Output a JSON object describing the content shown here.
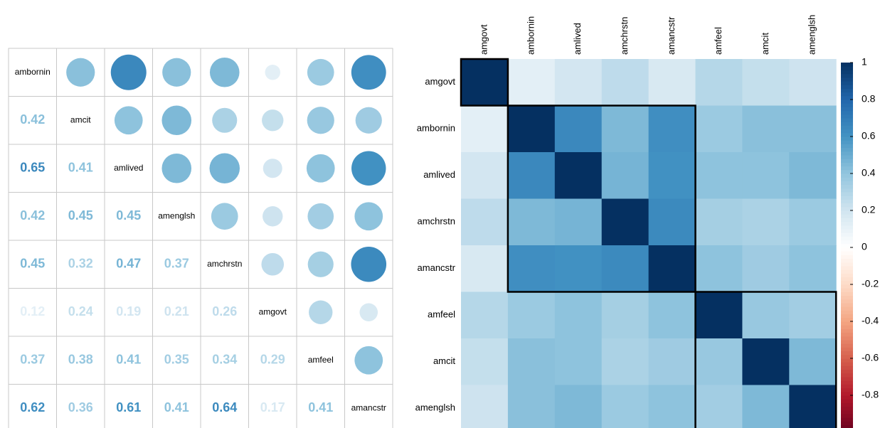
{
  "chart_data": [
    {
      "type": "corrplot-mixed",
      "variables": [
        "ambornin",
        "amcit",
        "amlived",
        "amenglsh",
        "amchrstn",
        "amgovt",
        "amfeel",
        "amancstr"
      ],
      "values": [
        [
          1,
          0.42,
          0.65,
          0.42,
          0.45,
          0.12,
          0.37,
          0.62
        ],
        [
          0.42,
          1,
          0.41,
          0.45,
          0.32,
          0.24,
          0.38,
          0.36
        ],
        [
          0.65,
          0.41,
          1,
          0.45,
          0.47,
          0.19,
          0.41,
          0.61
        ],
        [
          0.42,
          0.45,
          0.45,
          1,
          0.37,
          0.21,
          0.35,
          0.41
        ],
        [
          0.45,
          0.32,
          0.47,
          0.37,
          1,
          0.26,
          0.34,
          0.64
        ],
        [
          0.12,
          0.24,
          0.19,
          0.21,
          0.26,
          1,
          0.29,
          0.17
        ],
        [
          0.37,
          0.38,
          0.41,
          0.35,
          0.34,
          0.29,
          1,
          0.41
        ],
        [
          0.62,
          0.36,
          0.61,
          0.41,
          0.64,
          0.17,
          0.41,
          1
        ]
      ]
    },
    {
      "type": "heatmap",
      "categories": [
        "amgovt",
        "ambornin",
        "amlived",
        "amchrstn",
        "amancstr",
        "amfeel",
        "amcit",
        "amenglsh"
      ],
      "clusters": [
        1,
        4,
        3
      ],
      "colorbar": {
        "lim": [
          -1,
          1
        ],
        "ticks": [
          1,
          0.8,
          0.6,
          0.4,
          0.2,
          0,
          -0.2,
          -0.4,
          -0.6,
          -0.8
        ],
        "colormap": [
          "#67001F",
          "#B2182B",
          "#D6604D",
          "#F4A582",
          "#FDDBC7",
          "#FFFFFF",
          "#D1E5F0",
          "#92C5DE",
          "#4393C3",
          "#2166AC",
          "#053061"
        ]
      }
    }
  ]
}
